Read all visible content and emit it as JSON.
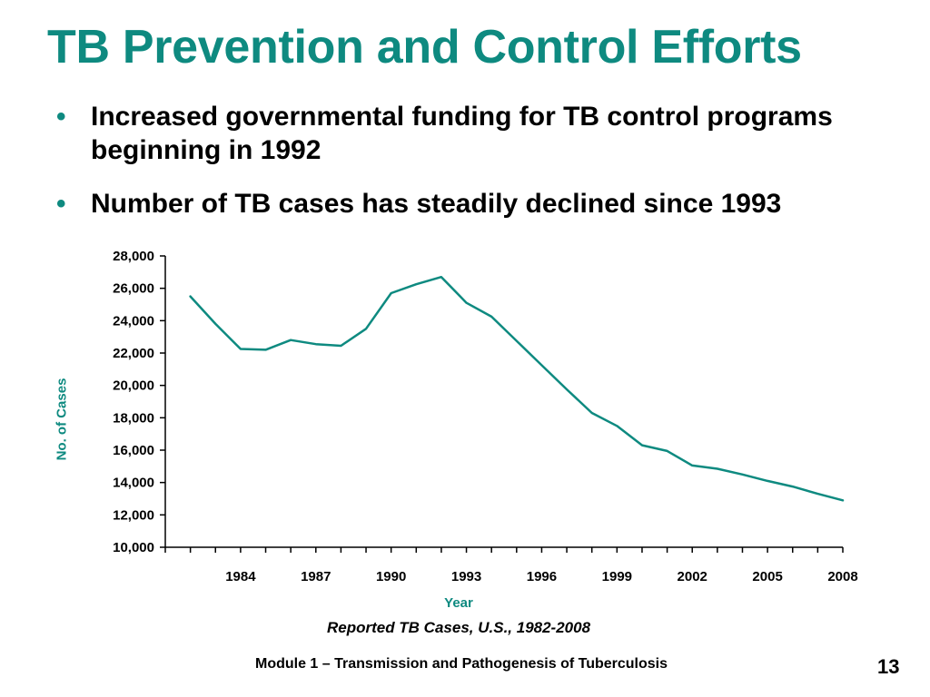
{
  "slide": {
    "title": "TB Prevention and Control Efforts",
    "bullets": [
      "Increased governmental funding for TB control programs beginning in 1992",
      "Number of TB cases has steadily declined since 1993"
    ],
    "bullet_glyph": "•",
    "caption": "Reported TB Cases, U.S., 1982-2008",
    "footer": "Module 1 – Transmission and Pathogenesis of Tuberculosis",
    "page_number": "13",
    "accent_color": "#0e8a80"
  },
  "chart_data": {
    "type": "line",
    "title": "",
    "xlabel": "Year",
    "ylabel": "No. of Cases",
    "x": [
      1982,
      1983,
      1984,
      1985,
      1986,
      1987,
      1988,
      1989,
      1990,
      1991,
      1992,
      1993,
      1994,
      1995,
      1996,
      1997,
      1998,
      1999,
      2000,
      2001,
      2002,
      2003,
      2004,
      2005,
      2006,
      2007,
      2008
    ],
    "series": [
      {
        "color": "#0e8a80",
        "values": [
          25500,
          23800,
          22250,
          22200,
          22800,
          22550,
          22450,
          23500,
          25700,
          26250,
          26700,
          25100,
          24250,
          22750,
          21250,
          19750,
          18300,
          17500,
          16300,
          15950,
          15050,
          14850,
          14500,
          14100,
          13750,
          13300,
          12900
        ]
      }
    ],
    "x_tick_labels": [
      "1984",
      "1987",
      "1990",
      "1993",
      "1996",
      "1999",
      "2002",
      "2005",
      "2008"
    ],
    "y_tick_labels": [
      "28,000",
      "26,000",
      "24,000",
      "22,000",
      "20,000",
      "18,000",
      "16,000",
      "14,000",
      "12,000",
      "10,000"
    ],
    "ylim": [
      10000,
      28000
    ],
    "xlim": [
      1981,
      2008
    ],
    "grid": false,
    "legend": "none"
  }
}
